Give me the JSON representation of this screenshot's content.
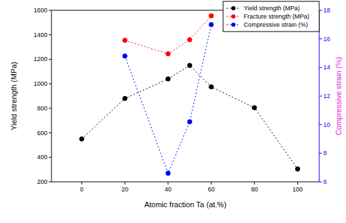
{
  "chart_data": {
    "type": "line",
    "x_label": "Atomic fraction Ta (at.%)",
    "y_label": "Yield strength (MPa)",
    "y2_label": "Compressive strain (%)",
    "x": [
      0,
      20,
      40,
      50,
      60,
      80,
      100
    ],
    "series": [
      {
        "name": "Yield strength (MPa)",
        "color": "#000000",
        "marker": "circle",
        "line_style": "dotted",
        "values": [
          550,
          880,
          1040,
          1150,
          975,
          805,
          305
        ]
      },
      {
        "name": "Fracture strength (MPa)",
        "color": "#ff0000",
        "marker": "circle",
        "line_style": "dotted",
        "values": [
          null,
          1355,
          1245,
          1360,
          1555,
          null,
          null
        ]
      },
      {
        "name": "Compressive strain (%)",
        "color": "#0000ff",
        "marker": "circle",
        "line_style": "dotted",
        "axis": "y2",
        "values": [
          null,
          14.8,
          6.6,
          10.2,
          17.0,
          null,
          null
        ]
      }
    ],
    "xlim": [
      -14,
      110
    ],
    "xticks": [
      0,
      20,
      40,
      60,
      80,
      100
    ],
    "ylim": [
      200,
      1600
    ],
    "yticks": [
      200,
      400,
      600,
      800,
      1000,
      1200,
      1400,
      1600
    ],
    "y2lim": [
      6,
      18
    ],
    "y2ticks": [
      6,
      8,
      10,
      12,
      14,
      16,
      18
    ],
    "legend": "top-right",
    "grid": false
  }
}
